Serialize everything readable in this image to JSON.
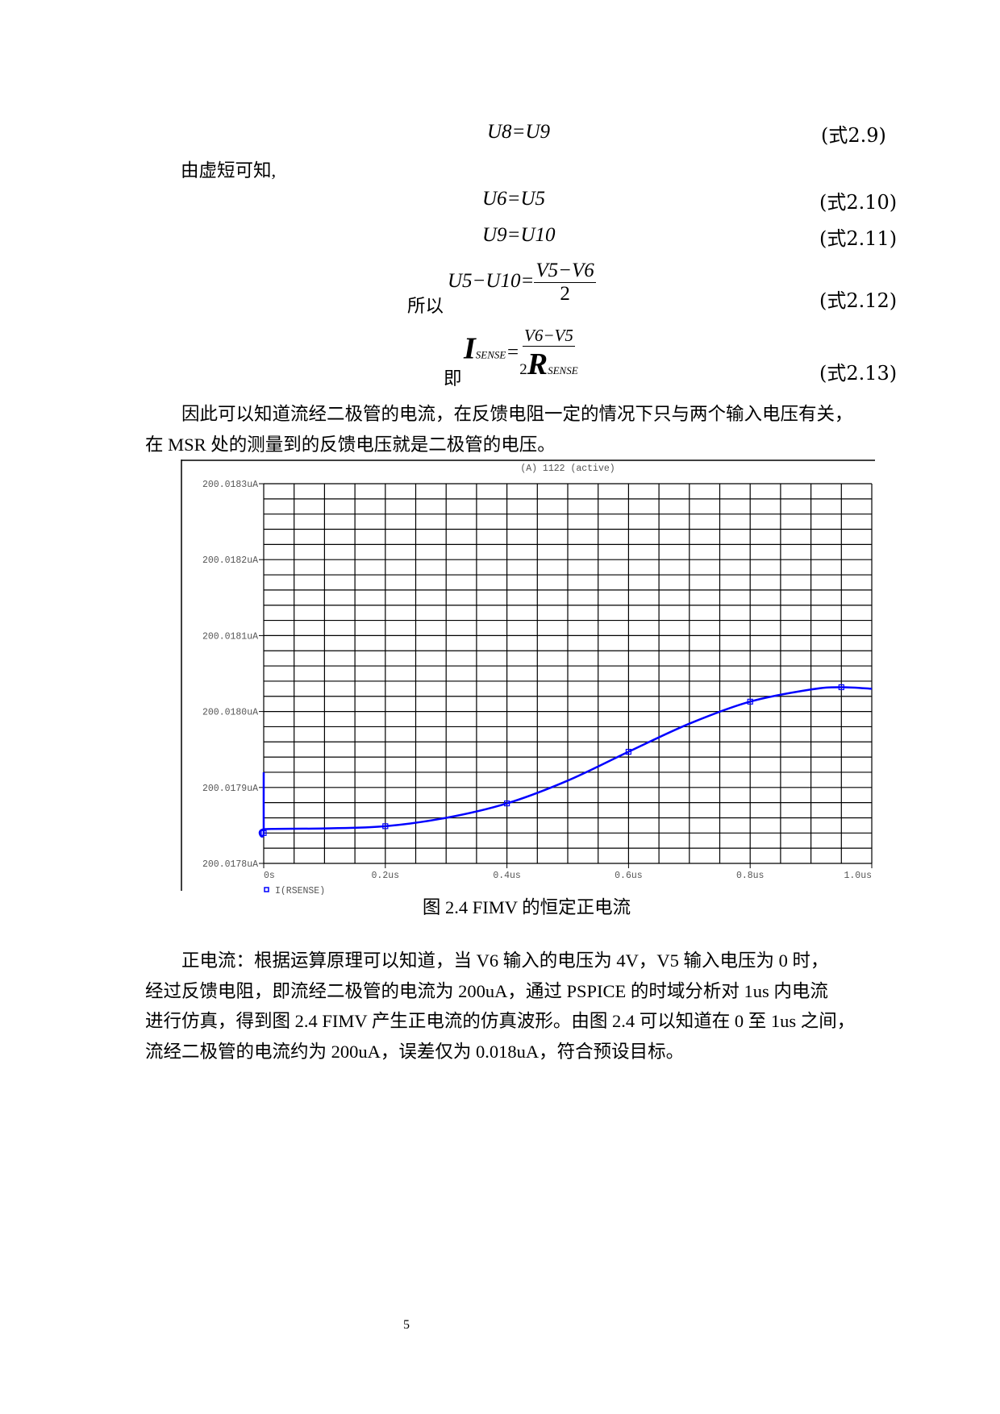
{
  "equations": [
    {
      "lhs": "U8",
      "rhs": "U9",
      "tag": "(式2.9)"
    },
    {
      "lhs": "U6",
      "rhs": "U5",
      "tag": "(式2.10)"
    },
    {
      "lhs": "U9",
      "rhs": "U10",
      "tag": "(式2.11)"
    },
    {
      "prefix": "所以",
      "lhs": "U5−U10",
      "num": "V5−V6",
      "den": "2",
      "tag": "(式2.12)"
    },
    {
      "prefix": "即",
      "lhs": "I",
      "lhs_sub": "SENSE",
      "num": "V6−V5",
      "den_coef": "2",
      "den": "R",
      "den_sub": "SENSE",
      "tag": "(式2.13)"
    }
  ],
  "intro": "由虚短可知,",
  "paragraph1": [
    "因此可以知道流经二极管的电流，在反馈电阻一定的情况下只与两个输入电压有关，",
    "在 MSR 处的测量到的反馈电压就是二极管的电压。"
  ],
  "chart_data": {
    "type": "line",
    "title": "(A) 1122 (active)",
    "xlabel": "",
    "ylabel": "",
    "x_ticks": [
      "0s",
      "0.2us",
      "0.4us",
      "0.6us",
      "0.8us",
      "1.0us"
    ],
    "y_ticks": [
      "200.0178uA",
      "200.0179uA",
      "200.0180uA",
      "200.0181uA",
      "200.0182uA",
      "200.0183uA"
    ],
    "xlim": [
      0,
      1.0
    ],
    "ylim": [
      200.0178,
      200.0183
    ],
    "x_unit": "us",
    "y_unit": "uA",
    "grid": true,
    "legend": "bottom-left",
    "series": [
      {
        "name": "I(RSENSE)",
        "color": "#0000ff",
        "x": [
          0,
          0,
          0.001,
          0.1,
          0.2,
          0.3,
          0.4,
          0.5,
          0.6,
          0.7,
          0.8,
          0.9,
          0.95,
          1.0
        ],
        "y": [
          200.01792,
          200.01784,
          200.017845,
          200.017846,
          200.017849,
          200.01786,
          200.017879,
          200.017909,
          200.017947,
          200.017984,
          200.018013,
          200.018029,
          200.018032,
          200.01803
        ]
      }
    ]
  },
  "caption": "图 2.4 FIMV 的恒定正电流",
  "paragraph2": [
    "正电流：根据运算原理可以知道，当 V6 输入的电压为 4V，V5 输入电压为 0 时，",
    "经过反馈电阻，即流经二极管的电流为 200uA，通过 PSPICE 的时域分析对 1us 内电流",
    "进行仿真，得到图 2.4 FIMV 产生正电流的仿真波形。由图 2.4 可以知道在 0 至 1us 之间，",
    "流经二极管的电流约为 200uA，误差仅为 0.018uA，符合预设目标。"
  ],
  "page_number": "5"
}
